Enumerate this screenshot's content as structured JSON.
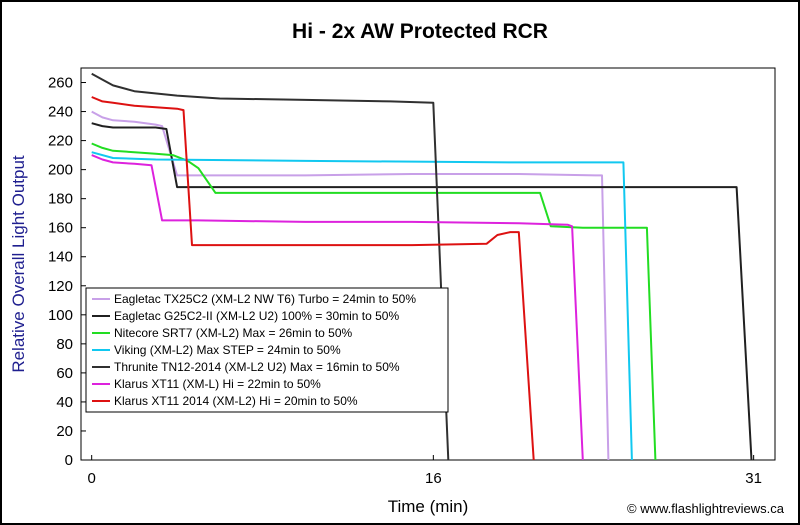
{
  "chart_data": {
    "type": "line",
    "title": "Hi - 2x AW Protected RCR",
    "xlabel": "Time (min)",
    "ylabel": "Relative Overall Light Output",
    "xlim": [
      -0.5,
      32
    ],
    "ylim": [
      0,
      270
    ],
    "xticks": [
      0,
      16,
      31
    ],
    "yticks": [
      0,
      20,
      40,
      60,
      80,
      100,
      120,
      140,
      160,
      180,
      200,
      220,
      240,
      260
    ],
    "grid": false,
    "legend_position": "bottom-left",
    "credit": "© www.flashlightreviews.ca",
    "series": [
      {
        "name": "Eagletac TX25C2 (XM-L2 NW T6) Turbo = 24min to 50%",
        "color": "#c8a0e8",
        "points": [
          [
            0,
            240
          ],
          [
            0.5,
            236
          ],
          [
            1,
            234
          ],
          [
            2,
            233
          ],
          [
            3,
            231
          ],
          [
            3.3,
            230
          ],
          [
            4,
            196
          ],
          [
            6,
            196
          ],
          [
            10,
            196
          ],
          [
            15,
            197
          ],
          [
            20,
            197
          ],
          [
            23.6,
            196
          ],
          [
            23.9,
            196
          ],
          [
            24.2,
            0
          ]
        ]
      },
      {
        "name": "Eagletac G25C2-II (XM-L2 U2) 100% = 30min to 50%",
        "color": "#202020",
        "points": [
          [
            0,
            232
          ],
          [
            0.5,
            230
          ],
          [
            1,
            229
          ],
          [
            2,
            229
          ],
          [
            3,
            229
          ],
          [
            3.5,
            228
          ],
          [
            4,
            188
          ],
          [
            6,
            188
          ],
          [
            10,
            188
          ],
          [
            15,
            188
          ],
          [
            20,
            188
          ],
          [
            25,
            188
          ],
          [
            29,
            188
          ],
          [
            30.2,
            188
          ],
          [
            30.9,
            0
          ]
        ]
      },
      {
        "name": "Nitecore SRT7 (XM-L2) Max = 26min to 50%",
        "color": "#22dd22",
        "points": [
          [
            0,
            218
          ],
          [
            0.5,
            215
          ],
          [
            1,
            213
          ],
          [
            2,
            212
          ],
          [
            3,
            211
          ],
          [
            3.8,
            210
          ],
          [
            4.5,
            206
          ],
          [
            5,
            201
          ],
          [
            5.8,
            184
          ],
          [
            7,
            184
          ],
          [
            10,
            184
          ],
          [
            15,
            184
          ],
          [
            20,
            184
          ],
          [
            21,
            184
          ],
          [
            21.5,
            161
          ],
          [
            23,
            160
          ],
          [
            25,
            160
          ],
          [
            26,
            160
          ],
          [
            26.4,
            0
          ]
        ]
      },
      {
        "name": "Viking  (XM-L2) Max STEP = 24min to 50%",
        "color": "#11c8f0",
        "points": [
          [
            0,
            212
          ],
          [
            1,
            208
          ],
          [
            3,
            207
          ],
          [
            10,
            206
          ],
          [
            20,
            205
          ],
          [
            24.9,
            205
          ],
          [
            25.3,
            0
          ]
        ]
      },
      {
        "name": "Thrunite TN12-2014 (XM-L2 U2) Max = 16min to 50%",
        "color": "#303030",
        "points": [
          [
            0,
            266
          ],
          [
            0.5,
            262
          ],
          [
            1,
            258
          ],
          [
            2,
            254
          ],
          [
            4,
            251
          ],
          [
            6,
            249
          ],
          [
            10,
            248
          ],
          [
            14,
            247
          ],
          [
            16,
            246
          ],
          [
            16.7,
            0
          ]
        ]
      },
      {
        "name": "Klarus XT11 (XM-L) Hi = 22min to 50%",
        "color": "#dd22dd",
        "points": [
          [
            0,
            210
          ],
          [
            0.5,
            207
          ],
          [
            1,
            205
          ],
          [
            2,
            204
          ],
          [
            2.8,
            203
          ],
          [
            3.3,
            165
          ],
          [
            5,
            165
          ],
          [
            10,
            164
          ],
          [
            15,
            164
          ],
          [
            20,
            163
          ],
          [
            22.3,
            162
          ],
          [
            22.5,
            161
          ],
          [
            23,
            0
          ]
        ]
      },
      {
        "name": "Klarus XT11 2014 (XM-L2) Hi = 20min to 50%",
        "color": "#dd1111",
        "points": [
          [
            0,
            250
          ],
          [
            0.5,
            247
          ],
          [
            1,
            246
          ],
          [
            2,
            244
          ],
          [
            3,
            243
          ],
          [
            4,
            242
          ],
          [
            4.3,
            241
          ],
          [
            4.7,
            148
          ],
          [
            6,
            148
          ],
          [
            10,
            148
          ],
          [
            15,
            148
          ],
          [
            18.5,
            149
          ],
          [
            19,
            155
          ],
          [
            19.6,
            157
          ],
          [
            20,
            157
          ],
          [
            20.7,
            0
          ]
        ]
      }
    ]
  }
}
